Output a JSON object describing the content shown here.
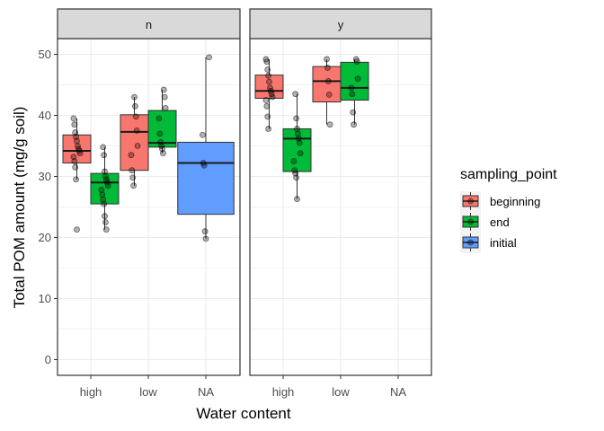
{
  "chart_data": {
    "type": "boxplot",
    "xlabel": "Water content",
    "ylabel": "Total POM amount (mg/g soil)",
    "ylim": [
      -2,
      53
    ],
    "yticks": [
      0,
      10,
      20,
      30,
      40,
      50
    ],
    "categories": [
      "high",
      "low",
      "NA"
    ],
    "legend": {
      "title": "sampling_point",
      "placement": "right",
      "entries": [
        {
          "name": "beginning",
          "color": "#F8766D"
        },
        {
          "name": "end",
          "color": "#00BA38"
        },
        {
          "name": "initial",
          "color": "#619CFF"
        }
      ]
    },
    "panels": [
      {
        "label": "n",
        "boxes": [
          {
            "category": "high",
            "series": "beginning",
            "q1": 32.2,
            "median": 34.2,
            "q3": 36.8,
            "whisker_low": 29.5,
            "whisker_high": 39.5,
            "points": [
              39.5,
              38.5,
              37.2,
              36.5,
              35.8,
              35.0,
              34.5,
              34.2,
              33.8,
              33.2,
              32.5,
              31.5,
              29.5,
              21.3
            ]
          },
          {
            "category": "high",
            "series": "end",
            "q1": 25.5,
            "median": 29.0,
            "q3": 30.5,
            "whisker_low": 21.3,
            "whisker_high": 34.8,
            "points": [
              34.8,
              33.5,
              30.8,
              30.0,
              29.5,
              29.0,
              28.5,
              27.8,
              27.0,
              26.2,
              25.5,
              23.5,
              22.5,
              21.3
            ]
          },
          {
            "category": "low",
            "series": "beginning",
            "q1": 31.0,
            "median": 37.3,
            "q3": 40.1,
            "whisker_low": 28.5,
            "whisker_high": 43.0,
            "points": [
              43.0,
              41.5,
              39.8,
              37.5,
              35.0,
              33.5,
              31.0,
              29.8,
              28.5
            ]
          },
          {
            "category": "low",
            "series": "end",
            "q1": 34.8,
            "median": 35.5,
            "q3": 40.8,
            "whisker_low": 33.8,
            "whisker_high": 44.2,
            "points": [
              44.2,
              43.0,
              41.2,
              39.5,
              37.0,
              35.6,
              35.0,
              34.5,
              33.8
            ]
          },
          {
            "category": "NA",
            "series": "initial",
            "q1": 23.8,
            "median": 32.2,
            "q3": 35.6,
            "whisker_low": 19.8,
            "whisker_high": 49.5,
            "points": [
              49.5,
              36.8,
              32.2,
              31.8,
              21.0,
              19.8
            ]
          }
        ]
      },
      {
        "label": "y",
        "boxes": [
          {
            "category": "high",
            "series": "beginning",
            "q1": 42.8,
            "median": 44.0,
            "q3": 46.6,
            "whisker_low": 37.8,
            "whisker_high": 49.2,
            "points": [
              49.2,
              48.8,
              47.5,
              46.5,
              45.5,
              44.5,
              44.0,
              43.5,
              43.0,
              42.5,
              41.5,
              39.8,
              37.8
            ]
          },
          {
            "category": "high",
            "series": "end",
            "q1": 30.8,
            "median": 36.2,
            "q3": 37.8,
            "whisker_low": 26.3,
            "whisker_high": 43.5,
            "points": [
              43.5,
              39.5,
              37.8,
              37.0,
              36.2,
              35.5,
              33.8,
              32.5,
              31.0,
              30.5,
              29.8,
              26.3
            ]
          },
          {
            "category": "low",
            "series": "beginning",
            "q1": 42.2,
            "median": 45.6,
            "q3": 48.0,
            "whisker_low": 38.5,
            "whisker_high": 49.2,
            "points": [
              49.2,
              47.8,
              45.6,
              43.4,
              38.5
            ]
          },
          {
            "category": "low",
            "series": "end",
            "q1": 42.5,
            "median": 44.5,
            "q3": 48.7,
            "whisker_low": 38.5,
            "whisker_high": 49.2,
            "points": [
              49.2,
              48.8,
              46.0,
              44.5,
              43.5,
              40.5,
              38.5
            ]
          }
        ]
      }
    ]
  }
}
